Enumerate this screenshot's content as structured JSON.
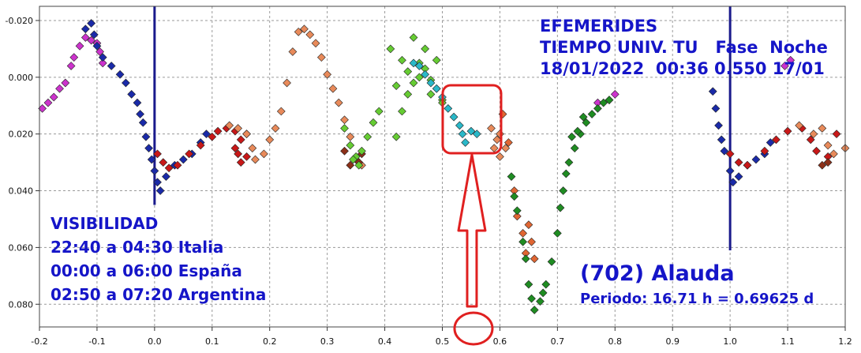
{
  "chart_data": {
    "type": "scatter",
    "title": "",
    "xlabel": "",
    "ylabel": "",
    "xlim": [
      -0.2,
      1.2
    ],
    "ylim": [
      -0.025,
      0.088
    ],
    "y_inverted": true,
    "grid": true,
    "grid_style": "dashed",
    "x_ticks": [
      "-0.2",
      "-0.1",
      "0.0",
      "0.1",
      "0.2",
      "0.3",
      "0.4",
      "0.5",
      "0.6",
      "0.7",
      "0.8",
      "0.9",
      "1.0",
      "1.1",
      "1.2"
    ],
    "x_tick_values": [
      -0.2,
      -0.1,
      0.0,
      0.1,
      0.2,
      0.3,
      0.4,
      0.5,
      0.6,
      0.7,
      0.8,
      0.9,
      1.0,
      1.1,
      1.2
    ],
    "y_ticks": [
      "-0.020",
      "0.000",
      "0.020",
      "0.040",
      "0.060",
      "0.080"
    ],
    "y_tick_values": [
      -0.02,
      0.0,
      0.02,
      0.04,
      0.06,
      0.08
    ],
    "vertical_lines": [
      0.0,
      1.0
    ],
    "series": [
      {
        "color": "#cc33cc",
        "points": [
          [
            -0.195,
            0.011
          ],
          [
            -0.185,
            0.009
          ],
          [
            -0.175,
            0.007
          ],
          [
            -0.165,
            0.004
          ],
          [
            -0.155,
            0.002
          ],
          [
            -0.145,
            -0.004
          ],
          [
            -0.14,
            -0.007
          ],
          [
            -0.13,
            -0.011
          ],
          [
            -0.12,
            -0.014
          ],
          [
            -0.11,
            -0.013
          ],
          [
            -0.1,
            -0.012
          ],
          [
            -0.095,
            -0.009
          ],
          [
            -0.09,
            -0.005
          ],
          [
            1.095,
            -0.004
          ],
          [
            1.105,
            -0.006
          ],
          [
            0.77,
            0.009
          ],
          [
            0.79,
            0.008
          ],
          [
            0.8,
            0.006
          ]
        ]
      },
      {
        "color": "#1a2aa8",
        "points": [
          [
            -0.12,
            -0.017
          ],
          [
            -0.11,
            -0.019
          ],
          [
            -0.105,
            -0.015
          ],
          [
            -0.1,
            -0.011
          ],
          [
            -0.09,
            -0.007
          ],
          [
            -0.075,
            -0.004
          ],
          [
            -0.06,
            -0.001
          ],
          [
            -0.05,
            0.002
          ],
          [
            -0.04,
            0.006
          ],
          [
            -0.03,
            0.009
          ],
          [
            -0.025,
            0.013
          ],
          [
            -0.02,
            0.016
          ],
          [
            -0.015,
            0.021
          ],
          [
            -0.01,
            0.025
          ],
          [
            -0.005,
            0.029
          ],
          [
            0.0,
            0.033
          ],
          [
            0.005,
            0.037
          ],
          [
            0.01,
            0.04
          ],
          [
            0.02,
            0.035
          ],
          [
            0.035,
            0.031
          ],
          [
            0.05,
            0.029
          ],
          [
            0.065,
            0.027
          ],
          [
            0.08,
            0.023
          ],
          [
            0.09,
            0.02
          ],
          [
            0.97,
            0.005
          ],
          [
            0.975,
            0.011
          ],
          [
            0.98,
            0.017
          ],
          [
            0.985,
            0.022
          ],
          [
            0.99,
            0.026
          ],
          [
            1.0,
            0.033
          ],
          [
            1.005,
            0.037
          ],
          [
            1.015,
            0.035
          ],
          [
            1.03,
            0.031
          ],
          [
            1.045,
            0.029
          ],
          [
            1.06,
            0.027
          ],
          [
            1.07,
            0.023
          ]
        ]
      },
      {
        "color": "#c81818",
        "points": [
          [
            0.005,
            0.027
          ],
          [
            0.015,
            0.03
          ],
          [
            0.025,
            0.032
          ],
          [
            0.04,
            0.031
          ],
          [
            0.06,
            0.027
          ],
          [
            0.08,
            0.024
          ],
          [
            0.1,
            0.021
          ],
          [
            0.11,
            0.019
          ],
          [
            0.125,
            0.018
          ],
          [
            0.14,
            0.019
          ],
          [
            0.15,
            0.022
          ],
          [
            0.16,
            0.02
          ],
          [
            0.14,
            0.025
          ],
          [
            0.145,
            0.027
          ],
          [
            0.15,
            0.03
          ],
          [
            0.16,
            0.028
          ],
          [
            1.0,
            0.027
          ],
          [
            1.015,
            0.03
          ],
          [
            1.03,
            0.031
          ],
          [
            1.06,
            0.026
          ],
          [
            1.08,
            0.022
          ],
          [
            1.1,
            0.019
          ],
          [
            1.125,
            0.018
          ],
          [
            1.14,
            0.022
          ],
          [
            1.15,
            0.026
          ],
          [
            1.17,
            0.028
          ],
          [
            1.185,
            0.02
          ]
        ]
      },
      {
        "color": "#e88a5a",
        "points": [
          [
            0.13,
            0.017
          ],
          [
            0.145,
            0.018
          ],
          [
            0.16,
            0.02
          ],
          [
            0.17,
            0.025
          ],
          [
            0.175,
            0.029
          ],
          [
            0.19,
            0.027
          ],
          [
            0.2,
            0.022
          ],
          [
            0.21,
            0.018
          ],
          [
            0.22,
            0.012
          ],
          [
            0.23,
            0.002
          ],
          [
            0.24,
            -0.009
          ],
          [
            0.25,
            -0.016
          ],
          [
            0.26,
            -0.017
          ],
          [
            0.27,
            -0.015
          ],
          [
            0.28,
            -0.012
          ],
          [
            0.29,
            -0.007
          ],
          [
            0.3,
            -0.001
          ],
          [
            0.31,
            0.004
          ],
          [
            0.32,
            0.009
          ],
          [
            0.33,
            0.015
          ],
          [
            0.34,
            0.021
          ],
          [
            0.35,
            0.029
          ],
          [
            0.36,
            0.031
          ],
          [
            0.585,
            0.018
          ],
          [
            0.595,
            0.022
          ],
          [
            0.61,
            0.025
          ],
          [
            0.6,
            0.028
          ],
          [
            0.59,
            0.025
          ],
          [
            0.6,
            0.02
          ],
          [
            1.12,
            0.017
          ],
          [
            1.145,
            0.02
          ],
          [
            1.16,
            0.018
          ],
          [
            1.17,
            0.024
          ],
          [
            1.18,
            0.027
          ],
          [
            1.2,
            0.025
          ]
        ]
      },
      {
        "color": "#e06633",
        "points": [
          [
            0.605,
            0.013
          ],
          [
            0.615,
            0.023
          ],
          [
            0.625,
            0.04
          ],
          [
            0.63,
            0.049
          ],
          [
            0.64,
            0.055
          ],
          [
            0.645,
            0.062
          ],
          [
            0.65,
            0.052
          ],
          [
            0.655,
            0.058
          ],
          [
            0.66,
            0.064
          ]
        ]
      },
      {
        "color": "#8c3018",
        "points": [
          [
            0.33,
            0.026
          ],
          [
            0.34,
            0.031
          ],
          [
            0.355,
            0.03
          ],
          [
            0.36,
            0.027
          ],
          [
            1.16,
            0.031
          ],
          [
            1.17,
            0.03
          ]
        ]
      },
      {
        "color": "#66cc33",
        "points": [
          [
            0.33,
            0.018
          ],
          [
            0.34,
            0.024
          ],
          [
            0.35,
            0.028
          ],
          [
            0.36,
            0.026
          ],
          [
            0.37,
            0.021
          ],
          [
            0.38,
            0.016
          ],
          [
            0.39,
            0.012
          ],
          [
            0.42,
            0.021
          ],
          [
            0.43,
            0.012
          ],
          [
            0.44,
            0.006
          ],
          [
            0.45,
            0.002
          ],
          [
            0.46,
            -0.005
          ],
          [
            0.47,
            -0.003
          ],
          [
            0.48,
            0.001
          ],
          [
            0.49,
            0.004
          ],
          [
            0.5,
            0.008
          ],
          [
            0.41,
            -0.01
          ],
          [
            0.43,
            -0.006
          ],
          [
            0.45,
            -0.014
          ],
          [
            0.47,
            -0.01
          ],
          [
            0.49,
            -0.006
          ],
          [
            0.42,
            0.003
          ],
          [
            0.44,
            -0.002
          ],
          [
            0.46,
            0.0
          ],
          [
            0.48,
            0.006
          ],
          [
            0.5,
            0.009
          ],
          [
            0.345,
            0.029
          ],
          [
            0.355,
            0.031
          ]
        ]
      },
      {
        "color": "#2ab8c8",
        "points": [
          [
            0.45,
            -0.005
          ],
          [
            0.46,
            -0.004
          ],
          [
            0.47,
            -0.001
          ],
          [
            0.48,
            0.002
          ],
          [
            0.49,
            0.004
          ],
          [
            0.5,
            0.007
          ],
          [
            0.51,
            0.011
          ],
          [
            0.52,
            0.014
          ],
          [
            0.53,
            0.017
          ],
          [
            0.535,
            0.02
          ],
          [
            0.54,
            0.023
          ],
          [
            0.55,
            0.019
          ],
          [
            0.56,
            0.02
          ]
        ]
      },
      {
        "color": "#1f8c22",
        "points": [
          [
            0.62,
            0.035
          ],
          [
            0.625,
            0.042
          ],
          [
            0.63,
            0.047
          ],
          [
            0.64,
            0.058
          ],
          [
            0.645,
            0.064
          ],
          [
            0.65,
            0.073
          ],
          [
            0.655,
            0.078
          ],
          [
            0.66,
            0.082
          ],
          [
            0.67,
            0.079
          ],
          [
            0.675,
            0.076
          ],
          [
            0.68,
            0.073
          ],
          [
            0.69,
            0.065
          ],
          [
            0.7,
            0.055
          ],
          [
            0.705,
            0.046
          ],
          [
            0.71,
            0.04
          ],
          [
            0.715,
            0.034
          ],
          [
            0.72,
            0.03
          ],
          [
            0.73,
            0.025
          ],
          [
            0.74,
            0.02
          ],
          [
            0.75,
            0.016
          ],
          [
            0.76,
            0.013
          ],
          [
            0.77,
            0.011
          ],
          [
            0.78,
            0.009
          ],
          [
            0.79,
            0.008
          ],
          [
            0.725,
            0.021
          ],
          [
            0.735,
            0.019
          ],
          [
            0.745,
            0.014
          ]
        ]
      }
    ]
  },
  "annotations": {
    "ephemeris": {
      "line1": "EFEMERIDES",
      "line2": "TIEMPO UNIV. TU   Fase  Noche",
      "line3": "18/01/2022  00:36 0.550 17/01"
    },
    "visibility": {
      "title": "VISIBILIDAD",
      "italy": "22:40 a 04:30 Italia",
      "spain": "00:00 a 06:00 España",
      "argentina": "02:50 a 07:20 Argentina"
    },
    "target": {
      "name": "(702) Alauda",
      "period": "Periodo: 16.71 h = 0.69625 d"
    }
  },
  "colors": {
    "annotation_text": "#1515c8",
    "highlight": "#e02020",
    "vline": "#1a1a8c"
  },
  "highlight": {
    "phase": 0.55
  }
}
